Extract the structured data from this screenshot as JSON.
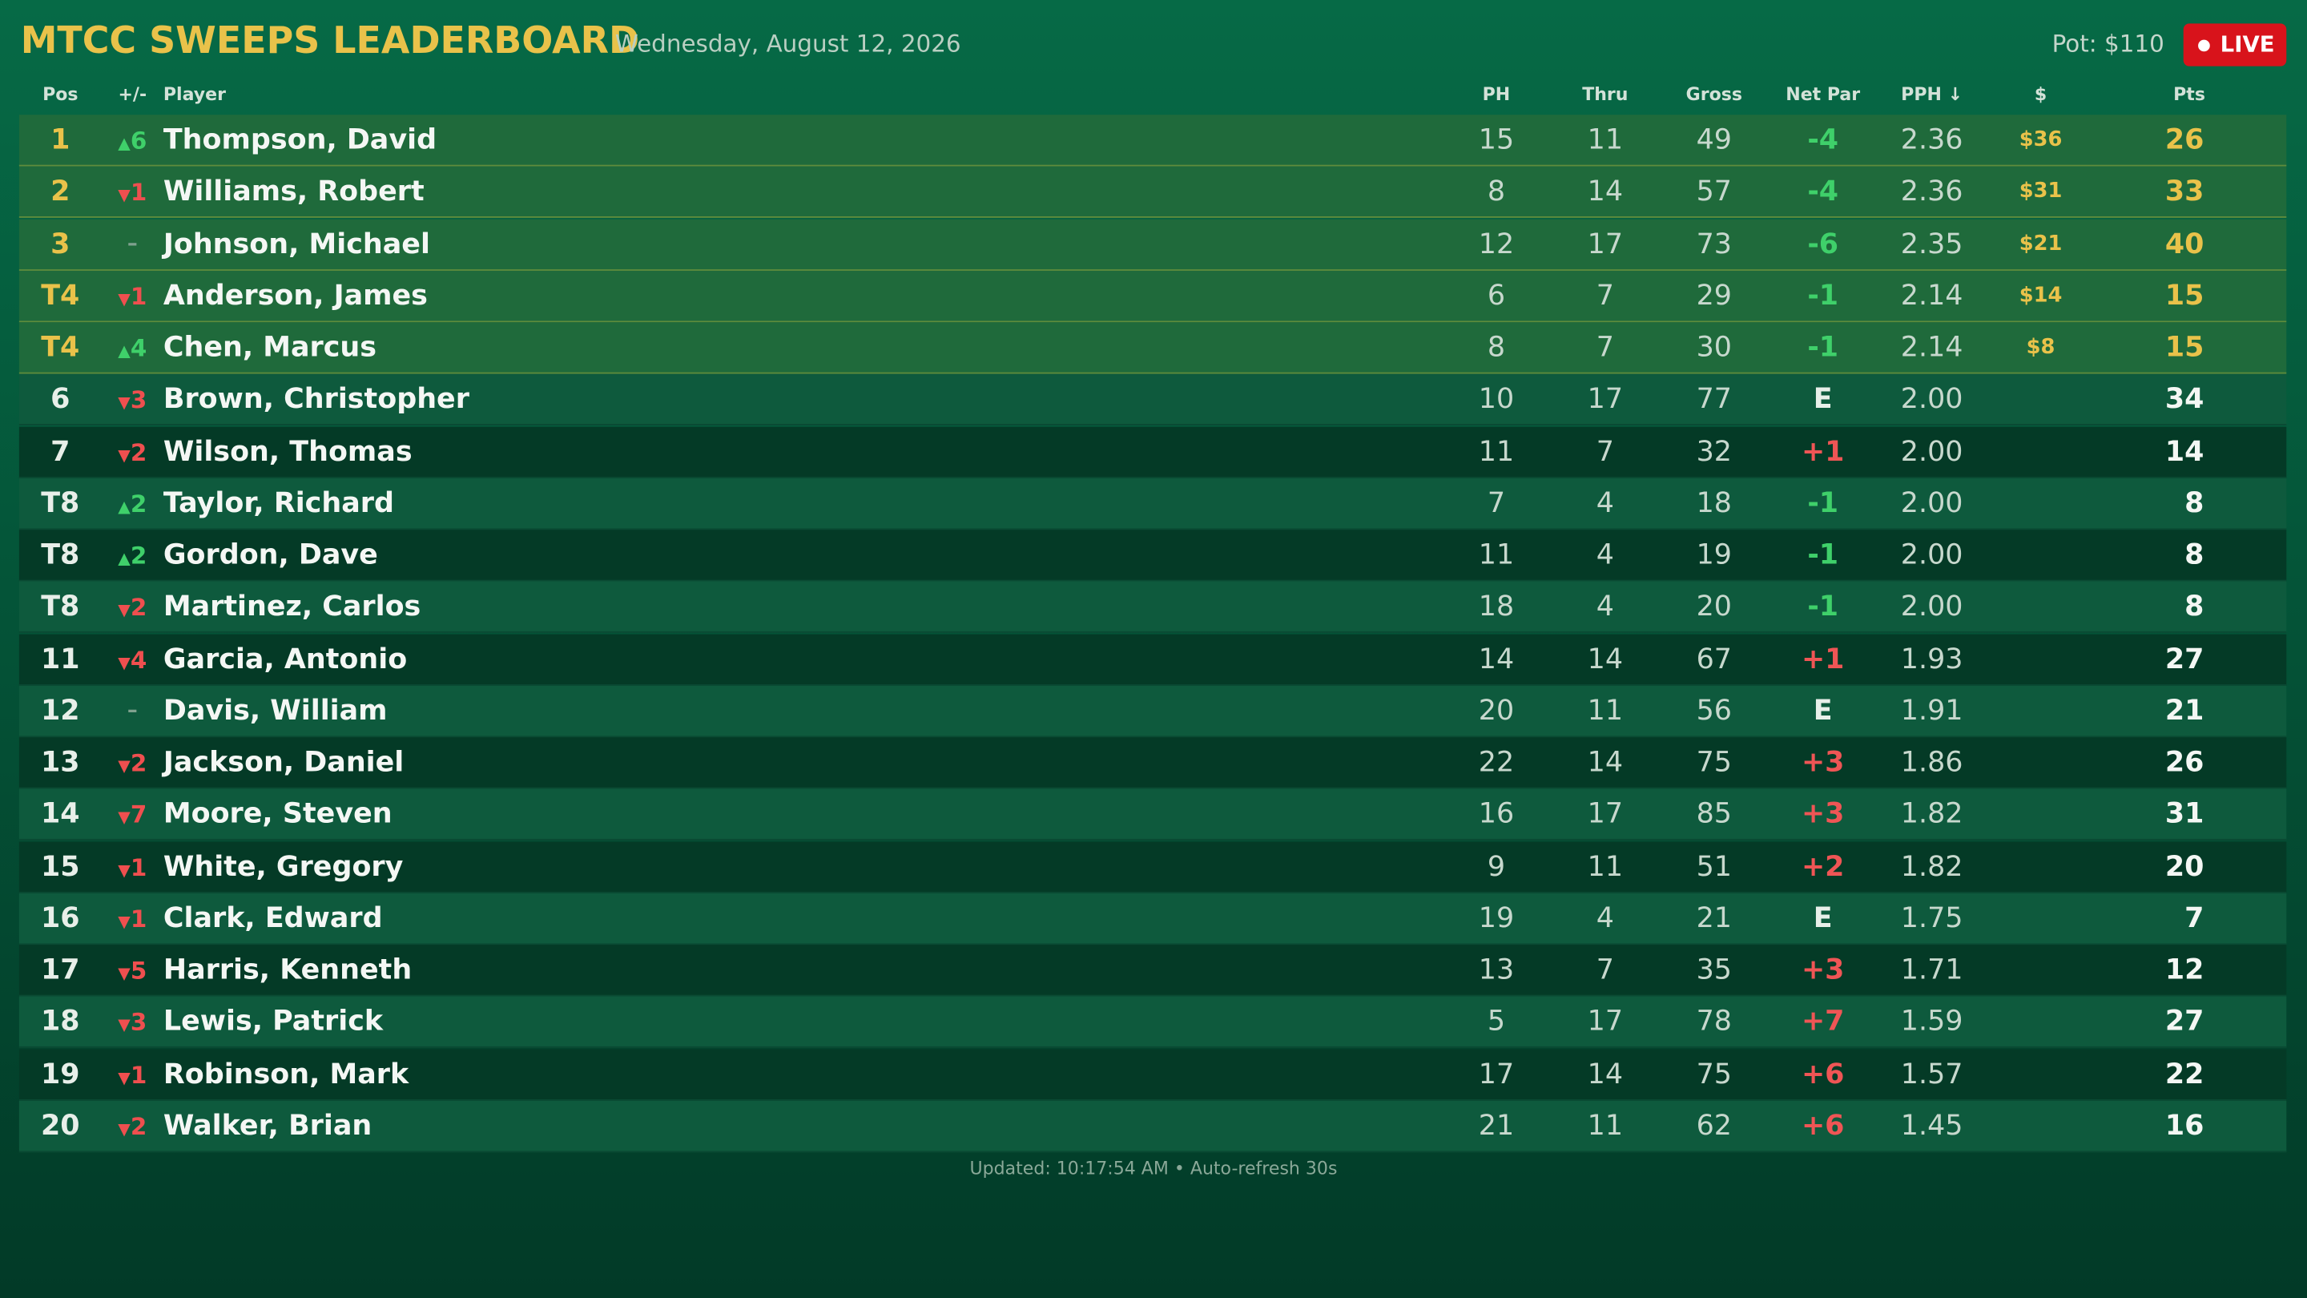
{
  "header": {
    "title": "MTCC SWEEPS LEADERBOARD",
    "date": "Wednesday, August 12, 2026",
    "pot": "Pot: $110",
    "live": "LIVE"
  },
  "table": {
    "columns": [
      "Pos",
      "+/-",
      "Player",
      "PH",
      "Thru",
      "Gross",
      "Net Par",
      "PPH ↓",
      "$",
      "Pts"
    ],
    "rows": [
      {
        "pos": "1",
        "dir": "up",
        "move": "6",
        "player": "Thompson, David",
        "ph": 15,
        "thru": 11,
        "gross": 49,
        "net": "-4",
        "pph": "2.36",
        "money": "$36",
        "pts": 26
      },
      {
        "pos": "2",
        "dir": "down",
        "move": "1",
        "player": "Williams, Robert",
        "ph": 8,
        "thru": 14,
        "gross": 57,
        "net": "-4",
        "pph": "2.36",
        "money": "$31",
        "pts": 33
      },
      {
        "pos": "3",
        "dir": "none",
        "move": "–",
        "player": "Johnson, Michael",
        "ph": 12,
        "thru": 17,
        "gross": 73,
        "net": "-6",
        "pph": "2.35",
        "money": "$21",
        "pts": 40
      },
      {
        "pos": "T4",
        "dir": "down",
        "move": "1",
        "player": "Anderson, James",
        "ph": 6,
        "thru": 7,
        "gross": 29,
        "net": "-1",
        "pph": "2.14",
        "money": "$14",
        "pts": 15
      },
      {
        "pos": "T4",
        "dir": "up",
        "move": "4",
        "player": "Chen, Marcus",
        "ph": 8,
        "thru": 7,
        "gross": 30,
        "net": "-1",
        "pph": "2.14",
        "money": "$8",
        "pts": 15
      },
      {
        "pos": "6",
        "dir": "down",
        "move": "3",
        "player": "Brown, Christopher",
        "ph": 10,
        "thru": 17,
        "gross": 77,
        "net": "E",
        "pph": "2.00",
        "pts": 34
      },
      {
        "pos": "7",
        "dir": "down",
        "move": "2",
        "player": "Wilson, Thomas",
        "ph": 11,
        "thru": 7,
        "gross": 32,
        "net": "+1",
        "pph": "2.00",
        "pts": 14
      },
      {
        "pos": "T8",
        "dir": "up",
        "move": "2",
        "player": "Taylor, Richard",
        "ph": 7,
        "thru": 4,
        "gross": 18,
        "net": "-1",
        "pph": "2.00",
        "pts": 8
      },
      {
        "pos": "T8",
        "dir": "up",
        "move": "2",
        "player": "Gordon, Dave",
        "ph": 11,
        "thru": 4,
        "gross": 19,
        "net": "-1",
        "pph": "2.00",
        "pts": 8
      },
      {
        "pos": "T8",
        "dir": "down",
        "move": "2",
        "player": "Martinez, Carlos",
        "ph": 18,
        "thru": 4,
        "gross": 20,
        "net": "-1",
        "pph": "2.00",
        "pts": 8
      },
      {
        "pos": "11",
        "dir": "down",
        "move": "4",
        "player": "Garcia, Antonio",
        "ph": 14,
        "thru": 14,
        "gross": 67,
        "net": "+1",
        "pph": "1.93",
        "pts": 27
      },
      {
        "pos": "12",
        "dir": "none",
        "move": "–",
        "player": "Davis, William",
        "ph": 20,
        "thru": 11,
        "gross": 56,
        "net": "E",
        "pph": "1.91",
        "pts": 21
      },
      {
        "pos": "13",
        "dir": "down",
        "move": "2",
        "player": "Jackson, Daniel",
        "ph": 22,
        "thru": 14,
        "gross": 75,
        "net": "+3",
        "pph": "1.86",
        "pts": 26
      },
      {
        "pos": "14",
        "dir": "down",
        "move": "7",
        "player": "Moore, Steven",
        "ph": 16,
        "thru": 17,
        "gross": 85,
        "net": "+3",
        "pph": "1.82",
        "pts": 31
      },
      {
        "pos": "15",
        "dir": "down",
        "move": "1",
        "player": "White, Gregory",
        "ph": 9,
        "thru": 11,
        "gross": 51,
        "net": "+2",
        "pph": "1.82",
        "pts": 20
      },
      {
        "pos": "16",
        "dir": "down",
        "move": "1",
        "player": "Clark, Edward",
        "ph": 19,
        "thru": 4,
        "gross": 21,
        "net": "E",
        "pph": "1.75",
        "pts": 7
      },
      {
        "pos": "17",
        "dir": "down",
        "move": "5",
        "player": "Harris, Kenneth",
        "ph": 13,
        "thru": 7,
        "gross": 35,
        "net": "+3",
        "pph": "1.71",
        "pts": 12
      },
      {
        "pos": "18",
        "dir": "down",
        "move": "3",
        "player": "Lewis, Patrick",
        "ph": 5,
        "thru": 17,
        "gross": 78,
        "net": "+7",
        "pph": "1.59",
        "pts": 27
      },
      {
        "pos": "19",
        "dir": "down",
        "move": "1",
        "player": "Robinson, Mark",
        "ph": 17,
        "thru": 14,
        "gross": 75,
        "net": "+6",
        "pph": "1.57",
        "pts": 22
      },
      {
        "pos": "20",
        "dir": "down",
        "move": "2",
        "player": "Walker, Brian",
        "ph": 21,
        "thru": 11,
        "gross": 62,
        "net": "+6",
        "pph": "1.45",
        "pts": 16
      }
    ]
  },
  "footer": "Updated: 10:17:54 AM • Auto-refresh 30s"
}
